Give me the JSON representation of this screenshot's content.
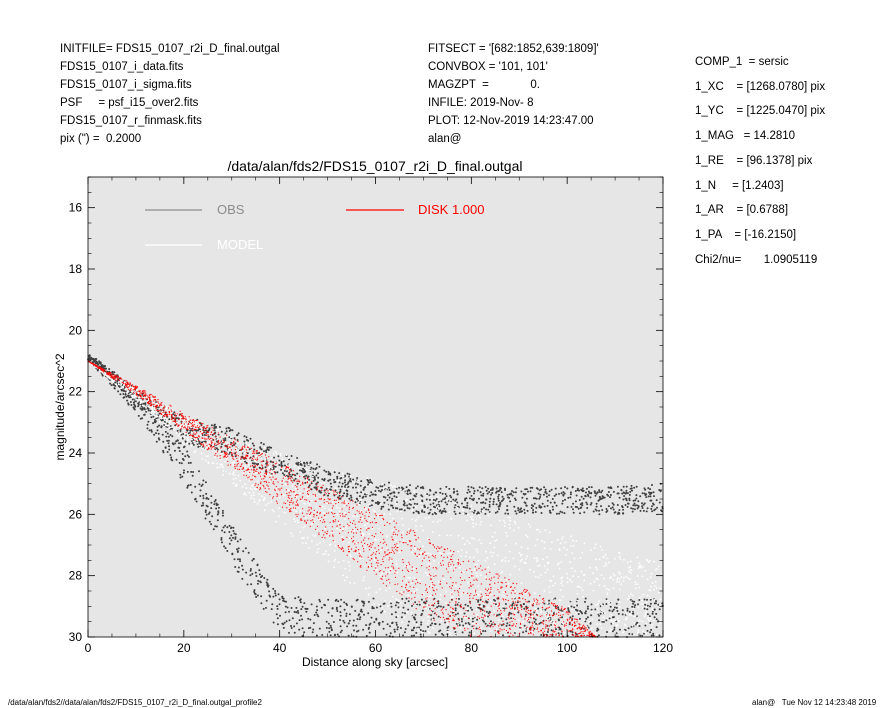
{
  "header": {
    "left": [
      "INITFILE= FDS15_0107_r2i_D_final.outgal",
      "FDS15_0107_i_data.fits",
      "FDS15_0107_i_sigma.fits",
      "PSF     = psf_i15_over2.fits",
      "FDS15_0107_r_finmask.fits",
      "pix (\") =  0.2000"
    ],
    "middle": [
      "FITSECT = '[682:1852,639:1809]'",
      "CONVBOX = '101, 101'",
      "MAGZPT  =             0.",
      "INFILE: 2019-Nov- 8",
      "PLOT: 12-Nov-2019 14:23:47.00",
      "alan@"
    ]
  },
  "params": [
    "COMP_1  = sersic",
    "1_XC    = [1268.0780] pix",
    "1_YC    = [1225.0470] pix",
    "1_MAG   = 14.2810",
    "1_RE    = [96.1378] pix",
    "1_N     = [1.2403]",
    "1_AR    = [0.6788]",
    "1_PA    = [-16.2150]",
    "",
    "Chi2/nu=       1.0905119"
  ],
  "footer": {
    "left": "/data/alan/fds2//data/alan/fds2/FDS15_0107_r2i_D_final.outgal_profile2",
    "right": "alan@   Tue Nov 12 14:23:48 2019"
  },
  "colors": {
    "plot_bg": "#e6e6e6",
    "obs": "#3f3f3f",
    "model": "#ffffff",
    "disk": "#ff0000",
    "obs_legend": "#8c8c8c"
  },
  "chart_data": {
    "type": "scatter",
    "title": "/data/alan/fds2/FDS15_0107_r2i_D_final.outgal",
    "xlabel": "Distance along sky [arcsec]",
    "ylabel": "magnitude/arcsec^2",
    "xlim": [
      0,
      120
    ],
    "ylim": [
      30,
      15
    ],
    "y_inverted": true,
    "xticks": [
      0,
      20,
      40,
      60,
      80,
      100,
      120
    ],
    "yticks": [
      16,
      18,
      20,
      22,
      24,
      26,
      28,
      30
    ],
    "grid": false,
    "legend": [
      {
        "label": "OBS",
        "color": "#8c8c8c"
      },
      {
        "label": "MODEL",
        "color": "#ffffff"
      },
      {
        "label": "DISK  1.000",
        "color": "#ff0000"
      }
    ],
    "series": [
      {
        "name": "OBS",
        "x": [
          0,
          5,
          10,
          15,
          20,
          25,
          30,
          35,
          40,
          45,
          50,
          60,
          70,
          80,
          90,
          100,
          110,
          120
        ],
        "y_upper": [
          20.8,
          21.3,
          21.9,
          22.4,
          22.8,
          23.0,
          23.2,
          23.6,
          23.9,
          24.2,
          24.5,
          24.9,
          25.1,
          25.1,
          25.1,
          25.1,
          25.1,
          25.0
        ],
        "y_lower": [
          21.0,
          21.8,
          22.7,
          23.8,
          25.0,
          26.3,
          27.6,
          28.8,
          29.8,
          30.0,
          30.0,
          30.0,
          30.0,
          30.0,
          30.0,
          30.0,
          30.0,
          30.0
        ]
      },
      {
        "name": "MODEL",
        "x": [
          0,
          10,
          20,
          30,
          40,
          50,
          60,
          70,
          80,
          90,
          100,
          110,
          120
        ],
        "y_upper": [
          21.0,
          21.9,
          22.8,
          23.4,
          24.0,
          24.4,
          24.9,
          25.3,
          25.7,
          26.2,
          26.6,
          27.2,
          27.6
        ],
        "y_lower": [
          21.0,
          22.3,
          23.7,
          25.0,
          26.4,
          27.7,
          29.0,
          30.0,
          30.0,
          30.0,
          30.0,
          30.0,
          30.0
        ]
      },
      {
        "name": "DISK  1.000",
        "x": [
          0,
          10,
          20,
          30,
          40,
          50,
          60,
          70,
          80,
          90,
          100,
          106
        ],
        "y_upper": [
          21.0,
          21.8,
          22.7,
          23.5,
          24.3,
          25.1,
          25.9,
          26.7,
          27.5,
          28.3,
          29.1,
          30.0
        ],
        "y_lower": [
          21.0,
          22.1,
          23.3,
          24.5,
          25.7,
          26.9,
          28.1,
          29.3,
          30.0,
          30.0,
          30.0,
          30.0
        ]
      }
    ]
  }
}
